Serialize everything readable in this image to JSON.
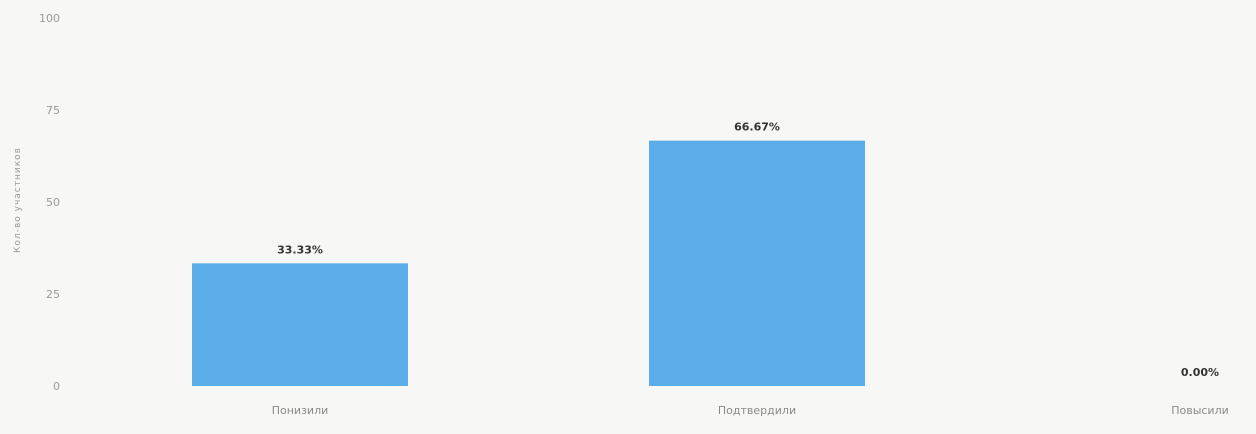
{
  "chart_data": {
    "type": "bar",
    "title": "",
    "xlabel": "",
    "ylabel": "Кол-во участников",
    "categories": [
      "Понизили",
      "Подтвердили",
      "Повысили"
    ],
    "values": [
      33.33,
      66.67,
      0
    ],
    "value_labels": [
      "33.33%",
      "66.67%",
      "0.00%"
    ],
    "y_ticks": [
      0,
      25,
      50,
      75,
      100
    ],
    "ylim": [
      0,
      100
    ],
    "grid": false,
    "legend": "none"
  },
  "colors": {
    "bar": "#5aade8",
    "background": "#f7f7f5"
  }
}
